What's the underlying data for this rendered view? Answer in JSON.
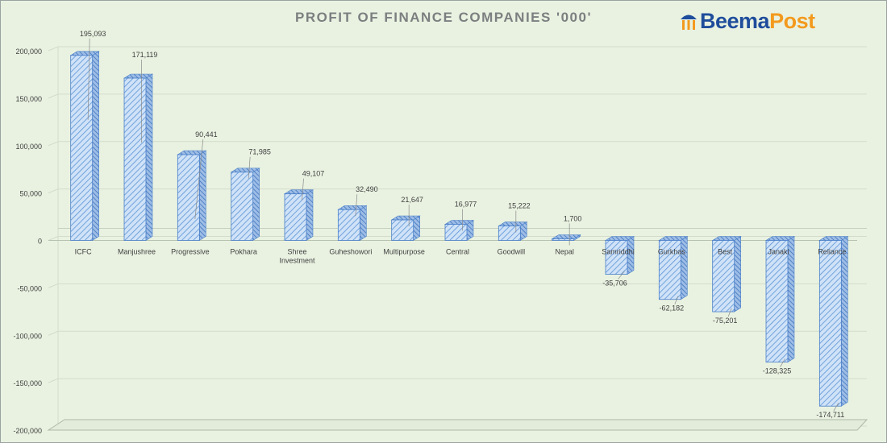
{
  "title": "PROFIT OF FINANCE COMPANIES '000'",
  "logo": {
    "part1": "Beema",
    "part2": "Post",
    "icon": "umbrella-icon",
    "color1": "#1f4d9c",
    "color2": "#f39a1e"
  },
  "colors": {
    "bar_fill": "#c6dcf6",
    "bar_stripe": "#5b93d6",
    "bar_stroke": "#4a7fc8",
    "grid": "#d3dccb",
    "text": "#404040"
  },
  "chart_data": {
    "type": "bar",
    "title": "PROFIT OF FINANCE COMPANIES '000'",
    "xlabel": "",
    "ylabel": "",
    "ylim": [
      -200000,
      200000
    ],
    "yticks": [
      200000,
      150000,
      100000,
      50000,
      0,
      -50000,
      -100000,
      -150000,
      -200000
    ],
    "ytick_labels": [
      "200,000",
      "150,000",
      "100,000",
      "50,000",
      "0",
      "-50,000",
      "-100,000",
      "-150,000",
      "-200,000"
    ],
    "grid": true,
    "style": "3d-hatched",
    "categories": [
      "ICFC",
      "Manjushree",
      "Progressive",
      "Pokhara",
      "Shree Investment",
      "Guheshowori",
      "Multipurpose",
      "Central",
      "Goodwill",
      "Nepal",
      "Samriddhi",
      "Gurkhas",
      "Best",
      "Janaki",
      "Reliance"
    ],
    "values": [
      195093,
      171119,
      90441,
      71985,
      49107,
      32490,
      21647,
      16977,
      15222,
      1700,
      -35706,
      -62182,
      -75201,
      -128325,
      -174711
    ],
    "data_labels": [
      "195,093",
      "171,119",
      "90,441",
      "71,985",
      "49,107",
      "32,490",
      "21,647",
      "16,977",
      "15,222",
      "1,700",
      "-35,706",
      "-62,182",
      "-75,201",
      "-128,325",
      "-174,711"
    ]
  }
}
